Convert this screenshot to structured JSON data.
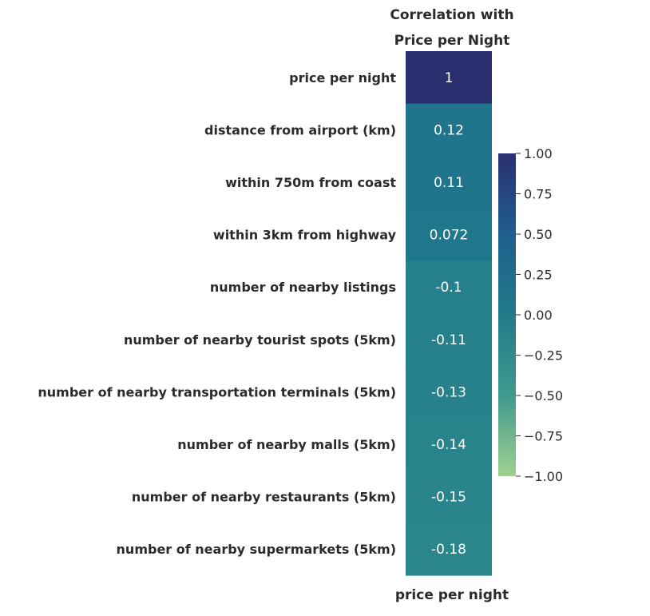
{
  "chart_data": {
    "type": "heatmap",
    "title_lines": [
      "Correlation with",
      "Price per Night"
    ],
    "xlabel": "price per night",
    "columns": [
      "price per night"
    ],
    "rows": [
      "price per night",
      "distance from airport (km)",
      "within 750m from coast",
      "within 3km from highway",
      "number of nearby listings",
      "number of nearby tourist spots (5km)",
      "number of nearby transportation terminals (5km)",
      "number of nearby malls (5km)",
      "number of nearby restaurants (5km)",
      "number of nearby supermarkets (5km)"
    ],
    "values": [
      1,
      0.12,
      0.11,
      0.072,
      -0.1,
      -0.11,
      -0.13,
      -0.14,
      -0.15,
      -0.18
    ],
    "value_labels": [
      "1",
      "0.12",
      "0.11",
      "0.072",
      "-0.1",
      "-0.11",
      "-0.13",
      "-0.14",
      "-0.15",
      "-0.18"
    ],
    "colorbar": {
      "vmin": -1,
      "vmax": 1,
      "ticks": [
        1.0,
        0.75,
        0.5,
        0.25,
        0.0,
        -0.25,
        -0.5,
        -0.75,
        -1.0
      ],
      "tick_labels": [
        "1.00",
        "0.75",
        "0.50",
        "0.25",
        "0.00",
        "−0.25",
        "−0.50",
        "−0.75",
        "−1.00"
      ],
      "colormap": [
        "#9fd18f",
        "#3f9a8e",
        "#207a8a",
        "#1f5f8d",
        "#2a2f70"
      ],
      "placement": "right"
    }
  }
}
